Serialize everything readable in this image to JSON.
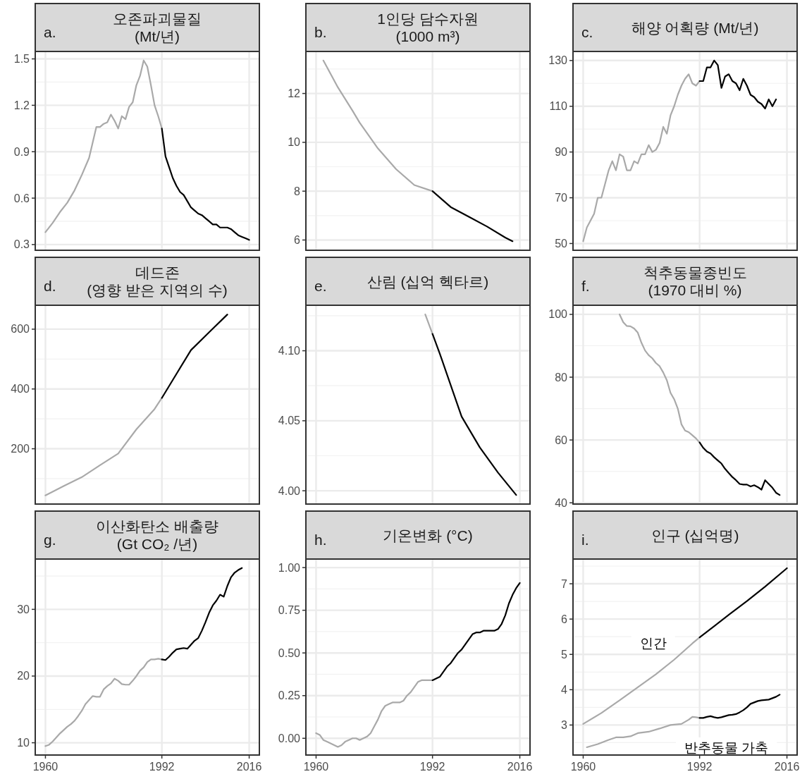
{
  "chart_data": [
    {
      "type": "line",
      "title": "오존파괴물질\n(Mt/년)",
      "annotations": [
        "a."
      ],
      "xlim": [
        1957.2,
        2018.8
      ],
      "xticks": [
        1960,
        1992,
        2016
      ],
      "ylim": [
        0.263,
        1.548
      ],
      "yticks": [
        0.3,
        0.6,
        0.9,
        1.2,
        1.5
      ],
      "grid": true,
      "tick_labels": "y",
      "series": [
        {
          "color": "#a9a9a9",
          "x": [
            1960,
            1962,
            1964,
            1966,
            1968,
            1970,
            1972,
            1973,
            1974,
            1975,
            1976,
            1977,
            1978,
            1979,
            1980,
            1981,
            1982,
            1983,
            1984,
            1985,
            1986,
            1987,
            1988,
            1989,
            1990,
            1991,
            1992
          ],
          "values": [
            0.38,
            0.44,
            0.51,
            0.57,
            0.65,
            0.75,
            0.86,
            0.96,
            1.06,
            1.06,
            1.08,
            1.09,
            1.14,
            1.1,
            1.05,
            1.13,
            1.11,
            1.19,
            1.22,
            1.33,
            1.39,
            1.49,
            1.45,
            1.33,
            1.2,
            1.13,
            1.05
          ]
        },
        {
          "color": "#000000",
          "x": [
            1992,
            1993,
            1994,
            1995,
            1996,
            1997,
            1998,
            1999,
            2000,
            2001,
            2002,
            2003,
            2004,
            2005,
            2006,
            2007,
            2008,
            2009,
            2010,
            2011,
            2012,
            2013,
            2014,
            2015,
            2016
          ],
          "values": [
            1.05,
            0.87,
            0.8,
            0.73,
            0.68,
            0.64,
            0.62,
            0.58,
            0.54,
            0.52,
            0.5,
            0.49,
            0.47,
            0.45,
            0.43,
            0.43,
            0.41,
            0.41,
            0.41,
            0.4,
            0.38,
            0.36,
            0.35,
            0.34,
            0.33
          ]
        }
      ]
    },
    {
      "type": "line",
      "title": "1인당 담수자원\n(1000 m³)",
      "annotations": [
        "b."
      ],
      "xlim": [
        1957.2,
        2018.8
      ],
      "xticks": [
        1960,
        1992,
        2016
      ],
      "ylim": [
        5.58,
        13.72
      ],
      "yticks": [
        6,
        8,
        10,
        12
      ],
      "grid": true,
      "tick_labels": "y",
      "series": [
        {
          "color": "#a9a9a9",
          "x": [
            1962,
            1966,
            1970,
            1972,
            1977,
            1982,
            1987,
            1992
          ],
          "values": [
            13.35,
            12.25,
            11.3,
            10.8,
            9.75,
            8.9,
            8.25,
            8.0
          ]
        },
        {
          "color": "#000000",
          "x": [
            1992,
            1997,
            2002,
            2007,
            2012,
            2014
          ],
          "values": [
            8.0,
            7.35,
            6.95,
            6.55,
            6.1,
            5.95
          ]
        }
      ]
    },
    {
      "type": "line",
      "title": "해양 어획량 (Mt/년)",
      "annotations": [
        "c."
      ],
      "xlim": [
        1957.2,
        2018.8
      ],
      "xticks": [
        1960,
        1992,
        2016
      ],
      "ylim": [
        47.05,
        133.95
      ],
      "yticks": [
        50,
        70,
        90,
        110,
        130
      ],
      "grid": true,
      "tick_labels": "y",
      "series": [
        {
          "color": "#a9a9a9",
          "x": [
            1960,
            1961,
            1962,
            1963,
            1964,
            1965,
            1966,
            1967,
            1968,
            1969,
            1970,
            1971,
            1972,
            1973,
            1974,
            1975,
            1976,
            1977,
            1978,
            1979,
            1980,
            1981,
            1982,
            1983,
            1984,
            1985,
            1986,
            1987,
            1988,
            1989,
            1990,
            1991,
            1992
          ],
          "values": [
            51,
            57,
            60,
            63,
            70,
            70,
            76,
            82,
            86,
            82,
            89,
            88,
            82,
            82,
            86,
            85,
            89,
            89,
            93,
            90,
            91,
            94,
            101,
            98,
            106,
            110,
            115,
            119,
            122,
            124,
            120,
            119,
            121
          ]
        },
        {
          "color": "#000000",
          "x": [
            1992,
            1993,
            1994,
            1995,
            1996,
            1997,
            1998,
            1999,
            2000,
            2001,
            2002,
            2003,
            2004,
            2005,
            2006,
            2007,
            2008,
            2009,
            2010,
            2011,
            2012,
            2013
          ],
          "values": [
            121,
            121,
            127,
            127,
            130,
            128,
            118,
            123,
            124,
            121,
            120,
            117,
            122,
            119,
            115,
            114,
            112,
            111,
            109,
            113,
            110,
            113
          ]
        }
      ]
    },
    {
      "type": "line",
      "title": "데드존\n(영향 받은 지역의 수)",
      "annotations": [
        "d."
      ],
      "xlim": [
        1957.2,
        2018.8
      ],
      "xticks": [
        1960,
        1992,
        2016
      ],
      "ylim": [
        15,
        680
      ],
      "yticks": [
        200,
        400,
        600
      ],
      "grid": true,
      "tick_labels": "y",
      "series": [
        {
          "color": "#a9a9a9",
          "x": [
            1960,
            1965,
            1970,
            1975,
            1980,
            1985,
            1990,
            1992
          ],
          "values": [
            44,
            75,
            105,
            145,
            184,
            265,
            333,
            370
          ]
        },
        {
          "color": "#000000",
          "x": [
            1992,
            1996,
            2000,
            2005,
            2010
          ],
          "values": [
            370,
            450,
            530,
            590,
            649
          ]
        }
      ]
    },
    {
      "type": "line",
      "title": "산림 (십억 헥타르)",
      "annotations": [
        "e."
      ],
      "xlim": [
        1957.2,
        2018.8
      ],
      "xticks": [
        1960,
        1992,
        2016
      ],
      "ylim": [
        3.9905,
        4.1325
      ],
      "yticks": [
        {
          "value": 4.0,
          "label": "4.00"
        },
        4.05,
        {
          "value": 4.1,
          "label": "4.10"
        }
      ],
      "grid": true,
      "tick_labels": "y",
      "series": [
        {
          "color": "#a9a9a9",
          "x": [
            1990,
            1992
          ],
          "values": [
            4.126,
            4.112
          ]
        },
        {
          "color": "#000000",
          "x": [
            1992,
            1994,
            1996,
            1998,
            2000,
            2005,
            2010,
            2015
          ],
          "values": [
            4.112,
            4.098,
            4.083,
            4.068,
            4.053,
            4.031,
            4.013,
            3.997
          ]
        }
      ]
    },
    {
      "type": "line",
      "title": "척추동물종빈도\n(1970 대비 %)",
      "annotations": [
        "f."
      ],
      "xlim": [
        1957.2,
        2018.8
      ],
      "xticks": [
        1960,
        1992,
        2016
      ],
      "ylim": [
        39.6,
        102.9
      ],
      "yticks": [
        40,
        60,
        80,
        100
      ],
      "grid": true,
      "tick_labels": "y",
      "series": [
        {
          "color": "#a9a9a9",
          "x": [
            1970,
            1971,
            1972,
            1973,
            1974,
            1975,
            1976,
            1977,
            1978,
            1979,
            1980,
            1981,
            1982,
            1983,
            1984,
            1985,
            1986,
            1987,
            1988,
            1989,
            1990,
            1991,
            1992
          ],
          "values": [
            100,
            97.5,
            96.3,
            96.2,
            95.5,
            94.2,
            91,
            88.5,
            87,
            86,
            84.5,
            83.5,
            81.5,
            79,
            75,
            73,
            70,
            65,
            63,
            62.5,
            61.5,
            60.5,
            59.2
          ]
        },
        {
          "color": "#000000",
          "x": [
            1992,
            1993,
            1994,
            1995,
            1996,
            1997,
            1998,
            1999,
            2000,
            2001,
            2002,
            2003,
            2004,
            2005,
            2006,
            2007,
            2008,
            2009,
            2010,
            2011,
            2012,
            2013,
            2014
          ],
          "values": [
            59.2,
            57.5,
            56.3,
            55.7,
            54.5,
            53.5,
            52.5,
            50.8,
            49.5,
            48.2,
            47.2,
            46,
            45.8,
            45.8,
            45.2,
            45.6,
            45,
            44.2,
            47.2,
            46,
            44.8,
            43.2,
            42.5
          ]
        }
      ]
    },
    {
      "type": "line",
      "title": "이산화탄소 배출량\n(Gt CO₂ /년)",
      "annotations": [
        "g."
      ],
      "xlim": [
        1957.2,
        2018.8
      ],
      "xticks": [
        1960,
        1992,
        2016
      ],
      "ylim": [
        8.16,
        37.54
      ],
      "yticks": [
        10,
        20,
        30
      ],
      "grid": true,
      "series": [
        {
          "color": "#a9a9a9",
          "x": [
            1960,
            1961,
            1962,
            1963,
            1964,
            1965,
            1966,
            1967,
            1968,
            1969,
            1970,
            1971,
            1972,
            1973,
            1974,
            1975,
            1976,
            1977,
            1978,
            1979,
            1980,
            1981,
            1982,
            1983,
            1984,
            1985,
            1986,
            1987,
            1988,
            1989,
            1990,
            1991,
            1992
          ],
          "values": [
            9.5,
            9.7,
            10.2,
            10.8,
            11.4,
            11.9,
            12.4,
            12.8,
            13.3,
            14,
            14.8,
            15.8,
            16.4,
            17,
            16.9,
            16.9,
            18,
            18.5,
            18.9,
            19.6,
            19.3,
            18.8,
            18.7,
            18.7,
            19.3,
            20,
            20.8,
            21.3,
            22.1,
            22.5,
            22.5,
            22.6,
            22.5
          ]
        },
        {
          "color": "#000000",
          "x": [
            1992,
            1993,
            1994,
            1995,
            1996,
            1997,
            1998,
            1999,
            2000,
            2001,
            2002,
            2003,
            2004,
            2005,
            2006,
            2007,
            2008,
            2009,
            2010,
            2011,
            2012,
            2013,
            2014
          ],
          "values": [
            22.5,
            22.4,
            22.9,
            23.5,
            24,
            24.1,
            24.2,
            24.1,
            24.7,
            25.3,
            25.7,
            26.8,
            28.1,
            29.5,
            30.6,
            31.3,
            32.2,
            31.9,
            33.5,
            34.8,
            35.5,
            35.9,
            36.2
          ]
        }
      ]
    },
    {
      "type": "line",
      "title": "기온변화 (°C)",
      "annotations": [
        "h."
      ],
      "xlim": [
        1957.2,
        2018.8
      ],
      "xticks": [
        1960,
        1992,
        2016
      ],
      "ylim": [
        -0.098,
        1.05
      ],
      "yticks": [
        {
          "value": 0,
          "label": "0.00"
        },
        0.25,
        {
          "value": 0.5,
          "label": "0.50"
        },
        0.75,
        {
          "value": 1,
          "label": "1.00"
        }
      ],
      "grid": true,
      "series": [
        {
          "color": "#a9a9a9",
          "x": [
            1960,
            1961,
            1962,
            1963,
            1964,
            1965,
            1966,
            1967,
            1968,
            1969,
            1970,
            1971,
            1972,
            1973,
            1974,
            1975,
            1976,
            1977,
            1978,
            1979,
            1980,
            1981,
            1982,
            1983,
            1984,
            1985,
            1986,
            1987,
            1988,
            1989,
            1990,
            1991,
            1992
          ],
          "values": [
            0.03,
            0.02,
            -0.01,
            -0.02,
            -0.03,
            -0.04,
            -0.05,
            -0.04,
            -0.02,
            -0.01,
            0,
            0,
            -0.01,
            0,
            0.01,
            0.03,
            0.07,
            0.11,
            0.16,
            0.19,
            0.2,
            0.21,
            0.21,
            0.21,
            0.22,
            0.25,
            0.27,
            0.3,
            0.33,
            0.34,
            0.34,
            0.34,
            0.34
          ]
        },
        {
          "color": "#000000",
          "x": [
            1992,
            1993,
            1994,
            1995,
            1996,
            1997,
            1998,
            1999,
            2000,
            2001,
            2002,
            2003,
            2004,
            2005,
            2006,
            2007,
            2008,
            2009,
            2010,
            2011,
            2012,
            2013,
            2014,
            2015,
            2016
          ],
          "values": [
            0.34,
            0.35,
            0.36,
            0.39,
            0.42,
            0.44,
            0.47,
            0.5,
            0.52,
            0.55,
            0.58,
            0.61,
            0.62,
            0.62,
            0.63,
            0.63,
            0.63,
            0.63,
            0.64,
            0.67,
            0.72,
            0.79,
            0.84,
            0.88,
            0.91
          ]
        }
      ]
    },
    {
      "type": "line",
      "title": "인구 (십억명)",
      "annotations": [
        "i."
      ],
      "xlim": [
        1957.2,
        2018.8
      ],
      "xticks": [
        1960,
        1992,
        2016
      ],
      "ylim": [
        2.15,
        7.7
      ],
      "yticks": [
        3,
        4,
        5,
        6,
        7
      ],
      "grid": true,
      "series": [
        {
          "name": "인간",
          "color": "#a9a9a9",
          "x": [
            1960,
            1965,
            1970,
            1975,
            1980,
            1985,
            1990,
            1992
          ],
          "values": [
            3.03,
            3.34,
            3.7,
            4.07,
            4.44,
            4.85,
            5.31,
            5.48
          ]
        },
        {
          "color": "#000000",
          "x": [
            1992,
            2000,
            2005,
            2010,
            2016
          ],
          "values": [
            5.48,
            6.12,
            6.51,
            6.92,
            7.44
          ]
        },
        {
          "name": "반추동물 가축",
          "color": "#a9a9a9",
          "x": [
            1961,
            1964,
            1967,
            1969,
            1971,
            1973,
            1975,
            1978,
            1981,
            1984,
            1987,
            1989,
            1990,
            1991,
            1992
          ],
          "values": [
            2.37,
            2.46,
            2.58,
            2.65,
            2.65,
            2.68,
            2.77,
            2.81,
            2.9,
            3.0,
            3.03,
            3.15,
            3.23,
            3.22,
            3.2
          ]
        },
        {
          "color": "#000000",
          "x": [
            1992,
            1993,
            1994,
            1995,
            1996,
            1997,
            1998,
            1999,
            2000,
            2001,
            2002,
            2003,
            2004,
            2005,
            2006,
            2007,
            2008,
            2009,
            2010,
            2011,
            2012,
            2013,
            2014
          ],
          "values": [
            3.2,
            3.2,
            3.23,
            3.25,
            3.22,
            3.2,
            3.22,
            3.25,
            3.28,
            3.29,
            3.31,
            3.36,
            3.42,
            3.5,
            3.6,
            3.64,
            3.68,
            3.7,
            3.71,
            3.72,
            3.76,
            3.8,
            3.86
          ]
        }
      ]
    }
  ]
}
